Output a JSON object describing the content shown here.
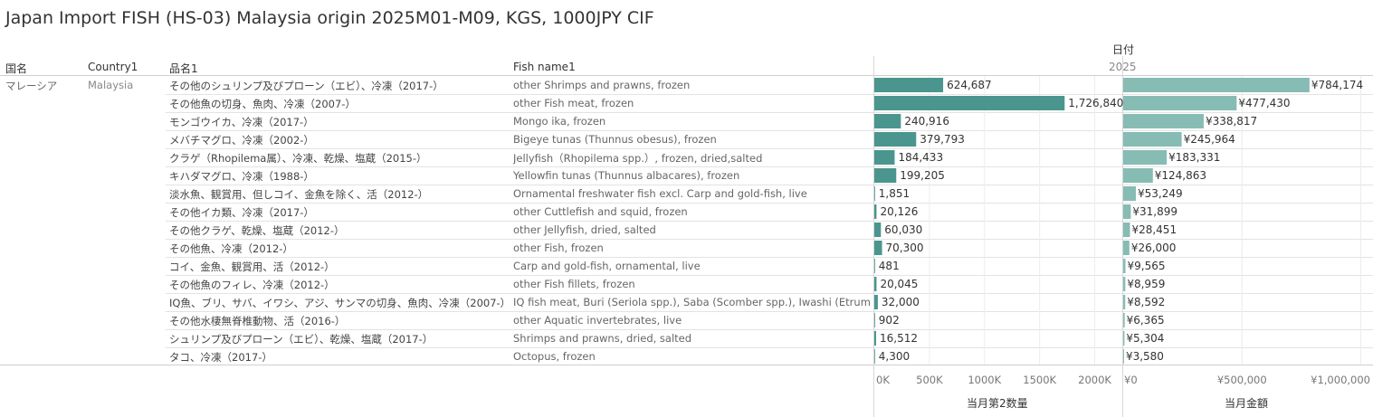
{
  "title": "Japan Import FISH (HS-03) Malaysia origin 2025M01-M09, KGS, 1000JPY CIF",
  "headers": {
    "country_jp": "国名",
    "country_en": "Country1",
    "item_jp": "品名1",
    "item_en": "Fish name1",
    "date_label": "日付",
    "year": "2025"
  },
  "country": {
    "jp": "マレーシア",
    "en": "Malaysia"
  },
  "rows": [
    {
      "jp": "その他のシュリンプ及びプローン（エビ）、冷凍（2017-）",
      "en": "other Shrimps and prawns, frozen",
      "qty_label": "624,687",
      "amt_label": "¥784,174"
    },
    {
      "jp": "その他魚の切身、魚肉、冷凍（2007-）",
      "en": "other Fish meat, frozen",
      "qty_label": "1,726,840",
      "amt_label": "¥477,430"
    },
    {
      "jp": "モンゴウイカ、冷凍（2017-）",
      "en": "Mongo ika, frozen",
      "qty_label": "240,916",
      "amt_label": "¥338,817"
    },
    {
      "jp": "メバチマグロ、冷凍（2002-）",
      "en": "Bigeye tunas (Thunnus obesus), frozen",
      "qty_label": "379,793",
      "amt_label": "¥245,964"
    },
    {
      "jp": "クラゲ（Rhopilema属）、冷凍、乾燥、塩蔵（2015-）",
      "en": "Jellyfish（Rhopilema spp.）, frozen, dried,salted",
      "qty_label": "184,433",
      "amt_label": "¥183,331"
    },
    {
      "jp": "キハダマグロ、冷凍（1988-）",
      "en": "Yellowfin tunas (Thunnus albacares), frozen",
      "qty_label": "199,205",
      "amt_label": "¥124,863"
    },
    {
      "jp": "淡水魚、観賞用、但しコイ、金魚を除く、活（2012-）",
      "en": "Ornamental freshwater fish excl. Carp and gold-fish, live",
      "qty_label": "1,851",
      "amt_label": "¥53,249"
    },
    {
      "jp": "その他イカ類、冷凍（2017-）",
      "en": "other Cuttlefish and squid, frozen",
      "qty_label": "20,126",
      "amt_label": "¥31,899"
    },
    {
      "jp": "その他クラゲ、乾燥、塩蔵（2012-）",
      "en": "other Jellyfish, dried, salted",
      "qty_label": "60,030",
      "amt_label": "¥28,451"
    },
    {
      "jp": "その他魚、冷凍（2012-）",
      "en": "other Fish, frozen",
      "qty_label": "70,300",
      "amt_label": "¥26,000"
    },
    {
      "jp": "コイ、金魚、観賞用、活（2012-）",
      "en": "Carp and gold-fish, ornamental, live",
      "qty_label": "481",
      "amt_label": "¥9,565"
    },
    {
      "jp": "その他魚のフィレ、冷凍（2012-）",
      "en": "other Fish fillets, frozen",
      "qty_label": "20,045",
      "amt_label": "¥8,959"
    },
    {
      "jp": "IQ魚、ブリ、サバ、イワシ、アジ、サンマの切身、魚肉、冷凍（2007-）",
      "en": "IQ fish meat,  Buri (Seriola spp.), Saba (Scomber spp.), Iwashi (Etrum..",
      "qty_label": "32,000",
      "amt_label": "¥8,592"
    },
    {
      "jp": "その他水棲無脊椎動物、活（2016-）",
      "en": "other Aquatic invertebrates, live",
      "qty_label": "902",
      "amt_label": "¥6,365"
    },
    {
      "jp": "シュリンプ及びプローン（エビ）、乾燥、塩蔵（2017-）",
      "en": "Shrimps and prawns, dried, salted",
      "qty_label": "16,512",
      "amt_label": "¥5,304"
    },
    {
      "jp": "タコ、冷凍（2017-）",
      "en": "Octopus, frozen",
      "qty_label": "4,300",
      "amt_label": "¥3,580"
    }
  ],
  "axes": {
    "qty": {
      "title": "当月第2数量",
      "ticks": [
        "0K",
        "500K",
        "1000K",
        "1500K",
        "2000K"
      ],
      "tick_values": [
        0,
        500000,
        1000000,
        1500000,
        2000000
      ],
      "max": 2250000
    },
    "amt": {
      "title": "当月金額",
      "ticks": [
        "¥0",
        "¥500,000",
        "¥1,000,000"
      ],
      "tick_values": [
        0,
        500000,
        1000000
      ],
      "max": 1040000
    }
  },
  "colors": {
    "qty_bar": "#4a968f",
    "amt_bar": "#86bcb3"
  },
  "chart_data": [
    {
      "type": "bar",
      "orientation": "horizontal",
      "title": "当月第2数量",
      "categories": [
        "other Shrimps and prawns, frozen",
        "other Fish meat, frozen",
        "Mongo ika, frozen",
        "Bigeye tunas (Thunnus obesus), frozen",
        "Jellyfish（Rhopilema spp.）, frozen, dried,salted",
        "Yellowfin tunas (Thunnus albacares), frozen",
        "Ornamental freshwater fish excl. Carp and gold-fish, live",
        "other Cuttlefish and squid, frozen",
        "other Jellyfish, dried, salted",
        "other Fish, frozen",
        "Carp and gold-fish, ornamental, live",
        "other Fish fillets, frozen",
        "IQ fish meat,  Buri (Seriola spp.), Saba (Scomber spp.), Iwashi (Etrum..",
        "other Aquatic invertebrates, live",
        "Shrimps and prawns, dried, salted",
        "Octopus, frozen"
      ],
      "values": [
        624687,
        1726840,
        240916,
        379793,
        184433,
        199205,
        1851,
        20126,
        60030,
        70300,
        481,
        20045,
        32000,
        902,
        16512,
        4300
      ],
      "xlim": [
        0,
        2250000
      ],
      "grid": true
    },
    {
      "type": "bar",
      "orientation": "horizontal",
      "title": "当月金額",
      "categories": [
        "other Shrimps and prawns, frozen",
        "other Fish meat, frozen",
        "Mongo ika, frozen",
        "Bigeye tunas (Thunnus obesus), frozen",
        "Jellyfish（Rhopilema spp.）, frozen, dried,salted",
        "Yellowfin tunas (Thunnus albacares), frozen",
        "Ornamental freshwater fish excl. Carp and gold-fish, live",
        "other Cuttlefish and squid, frozen",
        "other Jellyfish, dried, salted",
        "other Fish, frozen",
        "Carp and gold-fish, ornamental, live",
        "other Fish fillets, frozen",
        "IQ fish meat,  Buri (Seriola spp.), Saba (Scomber spp.), Iwashi (Etrum..",
        "other Aquatic invertebrates, live",
        "Shrimps and prawns, dried, salted",
        "Octopus, frozen"
      ],
      "values": [
        784174,
        477430,
        338817,
        245964,
        183331,
        124863,
        53249,
        31899,
        28451,
        26000,
        9565,
        8959,
        8592,
        6365,
        5304,
        3580
      ],
      "xlim": [
        0,
        1040000
      ],
      "grid": true
    }
  ]
}
